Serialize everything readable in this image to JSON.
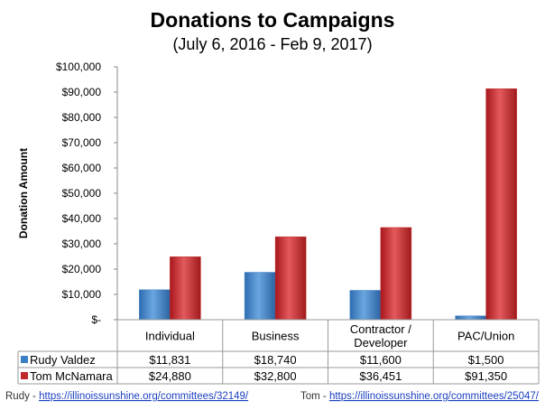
{
  "chart_data": {
    "type": "bar",
    "title": "Donations to Campaigns",
    "subtitle": "(July 6, 2016 - Feb 9, 2017)",
    "xlabel": "",
    "ylabel": "Donation Amount",
    "ylim": [
      0,
      100000
    ],
    "yticks": [
      0,
      10000,
      20000,
      30000,
      40000,
      50000,
      60000,
      70000,
      80000,
      90000,
      100000
    ],
    "ytick_labels": [
      "$-",
      "$10,000",
      "$20,000",
      "$30,000",
      "$40,000",
      "$50,000",
      "$60,000",
      "$70,000",
      "$80,000",
      "$90,000",
      "$100,000"
    ],
    "categories": [
      "Individual",
      "Business",
      "Contractor / Developer",
      "PAC/Union"
    ],
    "category_lines": [
      [
        "Individual"
      ],
      [
        "Business"
      ],
      [
        "Contractor /",
        "Developer"
      ],
      [
        "PAC/Union"
      ]
    ],
    "series": [
      {
        "name": "Rudy Valdez",
        "color": "#3b7fc4",
        "values": [
          11831,
          18740,
          11600,
          1500
        ],
        "labels": [
          "$11,831",
          "$18,740",
          "$11,600",
          "$1,500"
        ]
      },
      {
        "name": "Tom McNamara",
        "color": "#c0282b",
        "values": [
          24880,
          32800,
          36451,
          91350
        ],
        "labels": [
          "$24,880",
          "$32,800",
          "$36,451",
          "$91,350"
        ]
      }
    ],
    "grid": false,
    "legend": "data-table"
  },
  "footer": {
    "rudy_prefix": "Rudy - ",
    "rudy_link": "https://illinoissunshine.org/committees/32149/",
    "tom_prefix": "Tom - ",
    "tom_link": "https://illinoissunshine.org/committees/25047/"
  }
}
